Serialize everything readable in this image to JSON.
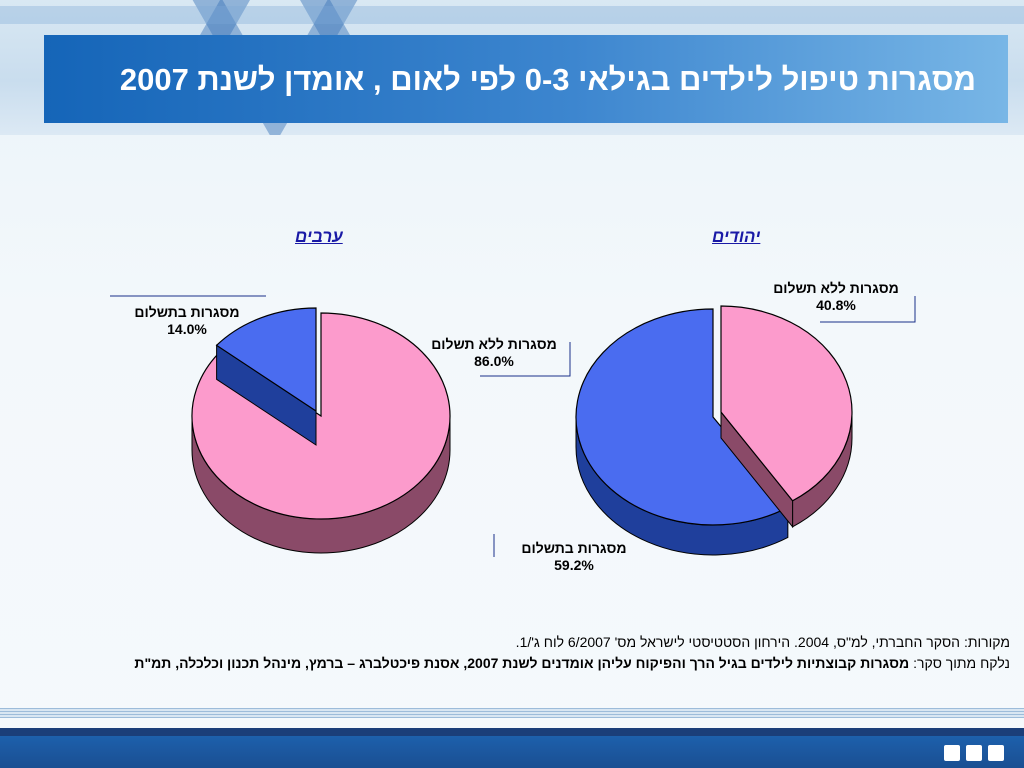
{
  "slide": {
    "title": "מסגרות טיפול לילדים בגילאי 0-3 לפי לאום , אומדן לשנת 2007",
    "sources_line1": "מקורות: הסקר החברתי, למ\"ס, 2004.  הירחון הסטטיסטי לישראל מס' 6/2007 לוח ג'/1.",
    "sources_line2_prefix": "נלקח מתוך סקר: ",
    "sources_line2_bold": "מסגרות קבוצתיות לילדים בגיל הרך והפיקוח עליהן אומדנים לשנת 2007,  אסנת פיכטלברג – ברמץ, מינהל תכנון וכלכלה, תמ\"ת"
  },
  "colors": {
    "paid": "#4a6cf0",
    "paid_side": "#1f3f9c",
    "unpaid": "#fc9bcc",
    "unpaid_side": "#8a4a68",
    "title_bar": "#1565b8"
  },
  "chart_data": [
    {
      "type": "pie",
      "title": "ערבים",
      "categories": [
        "מסגרות בתשלום",
        "מסגרות ללא תשלום"
      ],
      "values": [
        14.0,
        86.0
      ],
      "labels": [
        "14.0%",
        "86.0%"
      ]
    },
    {
      "type": "pie",
      "title": "יהודים",
      "categories": [
        "מסגרות ללא תשלום",
        "מסגרות בתשלום"
      ],
      "values": [
        40.8,
        59.2
      ],
      "labels": [
        "40.8%",
        "59.2%"
      ]
    }
  ]
}
